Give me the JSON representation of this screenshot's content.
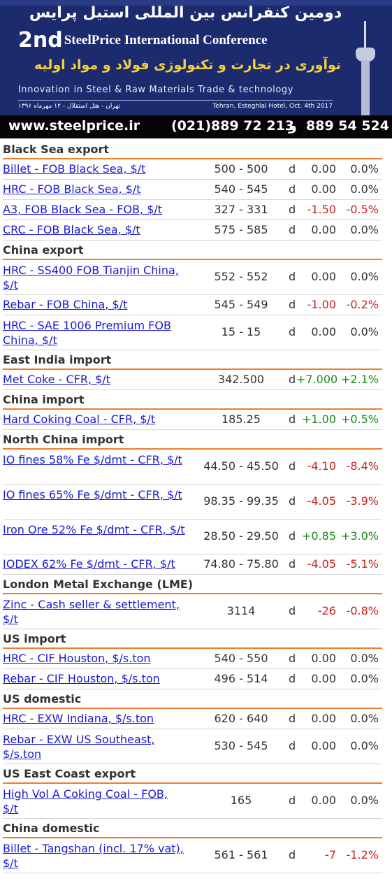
{
  "banner": {
    "fa_title": "دومین کنفرانس بین المللی استیل پرایس",
    "en_prefix": "2nd",
    "en_title": "SteelPrice International Conference",
    "fa_subtitle": "نوآوری در تجارت و تکنولوژی فولاد و مواد اولیه",
    "en_subtitle": "Innovation in Steel & Raw Materials Trade & technology",
    "fa_location": "تهران - هتل استقلال - ۱۲ مهرماه ۱۳۹۶",
    "en_location": "Tehran, Esteghlal Hotel, Oct. 4th 2017",
    "url": "www.steelprice.ir",
    "phone1": "(021)889 72 213",
    "and": "و",
    "phone2": "889 54 524",
    "colors": {
      "background": "#1c2b6e",
      "highlight": "#f4d03f",
      "footer": "#050505"
    }
  },
  "colors": {
    "link": "#1a1ad0",
    "accent_rule": "#ef7d2d",
    "negative": "#cc1f1f",
    "positive": "#1b8a1b"
  },
  "sections": [
    {
      "title": "Black Sea export",
      "rows": [
        {
          "name": "Billet - FOB Black Sea, $/t",
          "price": "500 - 500",
          "d": "d",
          "change": "0.00",
          "pct": "0.0%",
          "trend": "zero",
          "lines": 1
        },
        {
          "name": "HRC - FOB Black Sea, $/t",
          "price": "540 - 545",
          "d": "d",
          "change": "0.00",
          "pct": "0.0%",
          "trend": "zero",
          "lines": 1
        },
        {
          "name": "A3, FOB Black Sea - FOB, $/t",
          "price": "327 - 331",
          "d": "d",
          "change": "-1.50",
          "pct": "-0.5%",
          "trend": "neg",
          "lines": 1
        },
        {
          "name": "CRC - FOB Black Sea, $/t",
          "price": "575 - 585",
          "d": "d",
          "change": "0.00",
          "pct": "0.0%",
          "trend": "zero",
          "lines": 1
        }
      ]
    },
    {
      "title": "China export",
      "rows": [
        {
          "name": "HRC - SS400 FOB Tianjin China, $/t",
          "price": "552 - 552",
          "d": "d",
          "change": "0.00",
          "pct": "0.0%",
          "trend": "zero",
          "lines": 2
        },
        {
          "name": "Rebar - FOB China, $/t",
          "price": "545 - 549",
          "d": "d",
          "change": "-1.00",
          "pct": "-0.2%",
          "trend": "neg",
          "lines": 1
        },
        {
          "name": "HRC - SAE 1006 Premium FOB China, $/t",
          "price": "15 - 15",
          "d": "d",
          "change": "0.00",
          "pct": "0.0%",
          "trend": "zero",
          "lines": 2
        }
      ]
    },
    {
      "title": "East India import",
      "rows": [
        {
          "name": "Met Coke - CFR, $/t",
          "price": "342.500",
          "d": "d",
          "change": "+7.000",
          "pct": "+2.1%",
          "trend": "pos",
          "lines": 1
        }
      ]
    },
    {
      "title": "China import",
      "rows": [
        {
          "name": "Hard Coking Coal - CFR, $/t",
          "price": "185.25",
          "d": "d",
          "change": "+1.00",
          "pct": "+0.5%",
          "trend": "pos",
          "lines": 1
        }
      ]
    },
    {
      "title": "North China import",
      "rows": [
        {
          "name": "IO fines 58% Fe $/dmt - CFR, $/t",
          "price": "44.50 - 45.50",
          "d": "d",
          "change": "-4.10",
          "pct": "-8.4%",
          "trend": "neg",
          "lines": 2
        },
        {
          "name": "IO fines 65% Fe $/dmt - CFR, $/t",
          "price": "98.35 - 99.35",
          "d": "d",
          "change": "-4.05",
          "pct": "-3.9%",
          "trend": "neg",
          "lines": 2
        },
        {
          "name": "Iron Ore 52% Fe $/dmt - CFR, $/t",
          "price": "28.50 - 29.50",
          "d": "d",
          "change": "+0.85",
          "pct": "+3.0%",
          "trend": "pos",
          "lines": 2
        },
        {
          "name": "IODEX 62% Fe $/dmt - CFR, $/t",
          "price": "74.80 - 75.80",
          "d": "d",
          "change": "-4.05",
          "pct": "-5.1%",
          "trend": "neg",
          "lines": 1
        }
      ]
    },
    {
      "title": "London Metal Exchange (LME)",
      "rows": [
        {
          "name": "Zinc - Cash seller & settlement, $/t",
          "price": "3114",
          "d": "d",
          "change": "-26",
          "pct": "-0.8%",
          "trend": "neg",
          "lines": 2
        }
      ]
    },
    {
      "title": "US import",
      "rows": [
        {
          "name": "HRC - CIF Houston, $/s.ton",
          "price": "540 - 550",
          "d": "d",
          "change": "0.00",
          "pct": "0.0%",
          "trend": "zero",
          "lines": 1
        },
        {
          "name": "Rebar - CIF Houston, $/s.ton",
          "price": "496 - 514",
          "d": "d",
          "change": "0.00",
          "pct": "0.0%",
          "trend": "zero",
          "lines": 1
        }
      ]
    },
    {
      "title": "US domestic",
      "rows": [
        {
          "name": "HRC - EXW Indiana, $/s.ton",
          "price": "620 - 640",
          "d": "d",
          "change": "0.00",
          "pct": "0.0%",
          "trend": "zero",
          "lines": 1
        },
        {
          "name": "Rebar - EXW US Southeast, $/s.ton",
          "price": "530 - 545",
          "d": "d",
          "change": "0.00",
          "pct": "0.0%",
          "trend": "zero",
          "lines": 2
        }
      ]
    },
    {
      "title": "US East Coast export",
      "rows": [
        {
          "name": "High Vol A Coking Coal - FOB, $/t",
          "price": "165",
          "d": "d",
          "change": "0.00",
          "pct": "0.0%",
          "trend": "zero",
          "lines": 2
        }
      ]
    },
    {
      "title": "China domestic",
      "rows": [
        {
          "name": "Billet - Tangshan (incl. 17% vat), $/t",
          "price": "561 - 561",
          "d": "d",
          "change": "-7",
          "pct": "-1.2%",
          "trend": "neg",
          "lines": 2
        }
      ]
    }
  ]
}
